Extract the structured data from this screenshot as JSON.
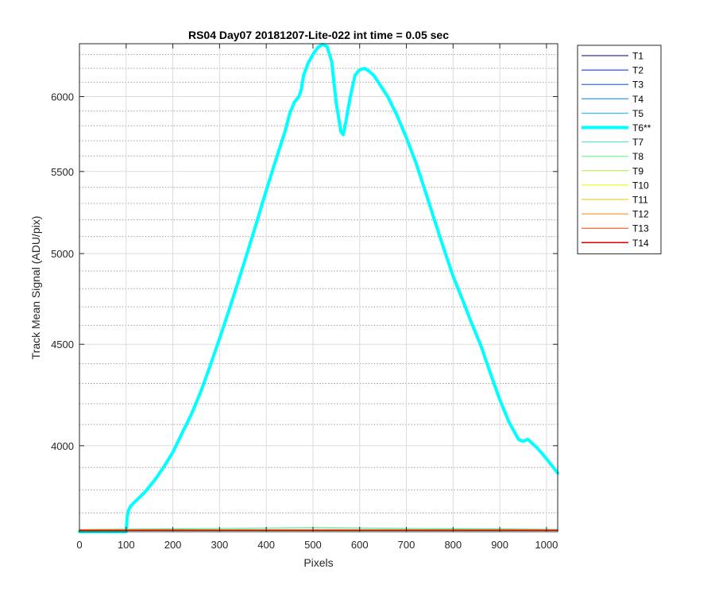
{
  "chart_data": {
    "type": "line",
    "title": "RS04 Day07 20181207-Lite-022 int time = 0.05 sec",
    "xlabel": "Pixels",
    "ylabel": "Track Mean Signal (ADU/pix)",
    "xlim": [
      0,
      1024
    ],
    "ylim": [
      3620,
      6380
    ],
    "x_ticks": [
      0,
      100,
      200,
      300,
      400,
      500,
      600,
      700,
      800,
      900,
      1000
    ],
    "y_ticks": [
      4000,
      4500,
      5000,
      5500,
      6000
    ],
    "y_scale": "log",
    "grid": true,
    "minor_grid": "dotted",
    "legend_position": "outside-right",
    "series": [
      {
        "name": "T1",
        "color": "#00008f",
        "width": 1,
        "x": [
          0,
          1024
        ],
        "y": [
          3626,
          3626
        ]
      },
      {
        "name": "T2",
        "color": "#0020ff",
        "width": 1,
        "x": [
          0,
          1024
        ],
        "y": [
          3626,
          3626
        ]
      },
      {
        "name": "T3",
        "color": "#0050ff",
        "width": 1,
        "x": [
          0,
          1024
        ],
        "y": [
          3627,
          3627
        ]
      },
      {
        "name": "T4",
        "color": "#0080ff",
        "width": 1,
        "x": [
          0,
          1024
        ],
        "y": [
          3627,
          3627
        ]
      },
      {
        "name": "T5",
        "color": "#10b0ff",
        "width": 1,
        "x": [
          0,
          1024
        ],
        "y": [
          3627,
          3627
        ]
      },
      {
        "name": "T6**",
        "color": "#00ffff",
        "width": 4,
        "x": [
          0,
          100,
          102,
          105,
          110,
          120,
          140,
          160,
          180,
          200,
          220,
          240,
          260,
          280,
          300,
          320,
          340,
          360,
          380,
          400,
          420,
          440,
          450,
          460,
          470,
          475,
          480,
          490,
          500,
          510,
          520,
          530,
          540,
          550,
          560,
          565,
          570,
          580,
          590,
          600,
          610,
          620,
          630,
          640,
          660,
          680,
          700,
          720,
          740,
          760,
          780,
          800,
          820,
          840,
          860,
          880,
          900,
          920,
          940,
          950,
          960,
          980,
          1000,
          1024
        ],
        "y": [
          3620,
          3620,
          3680,
          3710,
          3730,
          3750,
          3790,
          3840,
          3900,
          3970,
          4060,
          4150,
          4260,
          4390,
          4530,
          4680,
          4840,
          5010,
          5190,
          5380,
          5570,
          5760,
          5880,
          5960,
          6000,
          6050,
          6150,
          6240,
          6300,
          6350,
          6375,
          6360,
          6250,
          5950,
          5760,
          5740,
          5820,
          6000,
          6150,
          6190,
          6200,
          6180,
          6150,
          6100,
          6000,
          5870,
          5720,
          5560,
          5380,
          5200,
          5030,
          4870,
          4740,
          4610,
          4490,
          4350,
          4220,
          4110,
          4030,
          4020,
          4030,
          3990,
          3940,
          3875
        ]
      },
      {
        "name": "T7",
        "color": "#40e0c0",
        "width": 1,
        "x": [
          0,
          100,
          300,
          500,
          700,
          900,
          1024
        ],
        "y": [
          3628,
          3630,
          3633,
          3636,
          3633,
          3631,
          3629
        ]
      },
      {
        "name": "T8",
        "color": "#60f080",
        "width": 1,
        "x": [
          0,
          100,
          300,
          500,
          700,
          900,
          1024
        ],
        "y": [
          3629,
          3631,
          3634,
          3637,
          3634,
          3632,
          3630
        ]
      },
      {
        "name": "T9",
        "color": "#a0f040",
        "width": 1,
        "x": [
          0,
          1024
        ],
        "y": [
          3628,
          3628
        ]
      },
      {
        "name": "T10",
        "color": "#f0f000",
        "width": 1,
        "x": [
          0,
          1024
        ],
        "y": [
          3627,
          3627
        ]
      },
      {
        "name": "T11",
        "color": "#f0c000",
        "width": 1,
        "x": [
          0,
          1024
        ],
        "y": [
          3627,
          3627
        ]
      },
      {
        "name": "T12",
        "color": "#ff8000",
        "width": 1,
        "x": [
          0,
          1024
        ],
        "y": [
          3626,
          3626
        ]
      },
      {
        "name": "T13",
        "color": "#ff4000",
        "width": 1,
        "x": [
          0,
          1024
        ],
        "y": [
          3626,
          3626
        ]
      },
      {
        "name": "T14",
        "color": "#e00000",
        "width": 1.5,
        "x": [
          0,
          1024
        ],
        "y": [
          3626,
          3626
        ]
      }
    ]
  }
}
